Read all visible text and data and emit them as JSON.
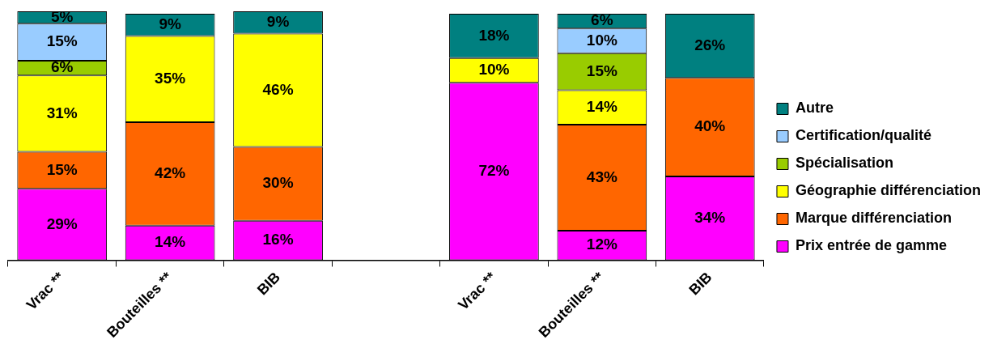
{
  "chart_data": {
    "type": "bar",
    "stacked": true,
    "categories": [
      "Vrac **",
      "Bouteilles **",
      "BIB",
      null,
      "Vrac **",
      "Bouteilles **",
      "BIB"
    ],
    "ylim": [
      0,
      101
    ],
    "tick_labels": "x",
    "grid": false,
    "legend": "right",
    "series": [
      {
        "name": "Prix entrée de gamme",
        "color": "#ff00ff",
        "values": [
          29,
          14,
          16,
          null,
          72,
          12,
          34
        ],
        "value_labels": [
          "29%",
          "14%",
          "16%",
          null,
          "72%",
          "12%",
          "34%"
        ]
      },
      {
        "name": "Marque différenciation",
        "color": "#ff6600",
        "values": [
          15,
          42,
          30,
          null,
          null,
          43,
          40
        ],
        "value_labels": [
          "15%",
          "42%",
          "30%",
          null,
          null,
          "43%",
          "40%"
        ]
      },
      {
        "name": "Géographie différenciation",
        "color": "#ffff00",
        "values": [
          31,
          35,
          46,
          null,
          10,
          14,
          null
        ],
        "value_labels": [
          "31%",
          "35%",
          "46%",
          null,
          "10%",
          "14%",
          null
        ]
      },
      {
        "name": "Spécialisation",
        "color": "#99cc00",
        "values": [
          6,
          null,
          null,
          null,
          null,
          15,
          null
        ],
        "value_labels": [
          "6%",
          null,
          null,
          null,
          null,
          "15%",
          null
        ]
      },
      {
        "name": "Certification/qualité",
        "color": "#99ccff",
        "values": [
          15,
          null,
          null,
          null,
          null,
          10,
          null
        ],
        "value_labels": [
          "15%",
          null,
          null,
          null,
          null,
          "10%",
          null
        ]
      },
      {
        "name": "Autre",
        "color": "#008080",
        "values": [
          5,
          9,
          9,
          null,
          18,
          6,
          26
        ],
        "value_labels": [
          "5%",
          "9%",
          "9%",
          null,
          "18%",
          "6%",
          "26%"
        ]
      }
    ]
  }
}
